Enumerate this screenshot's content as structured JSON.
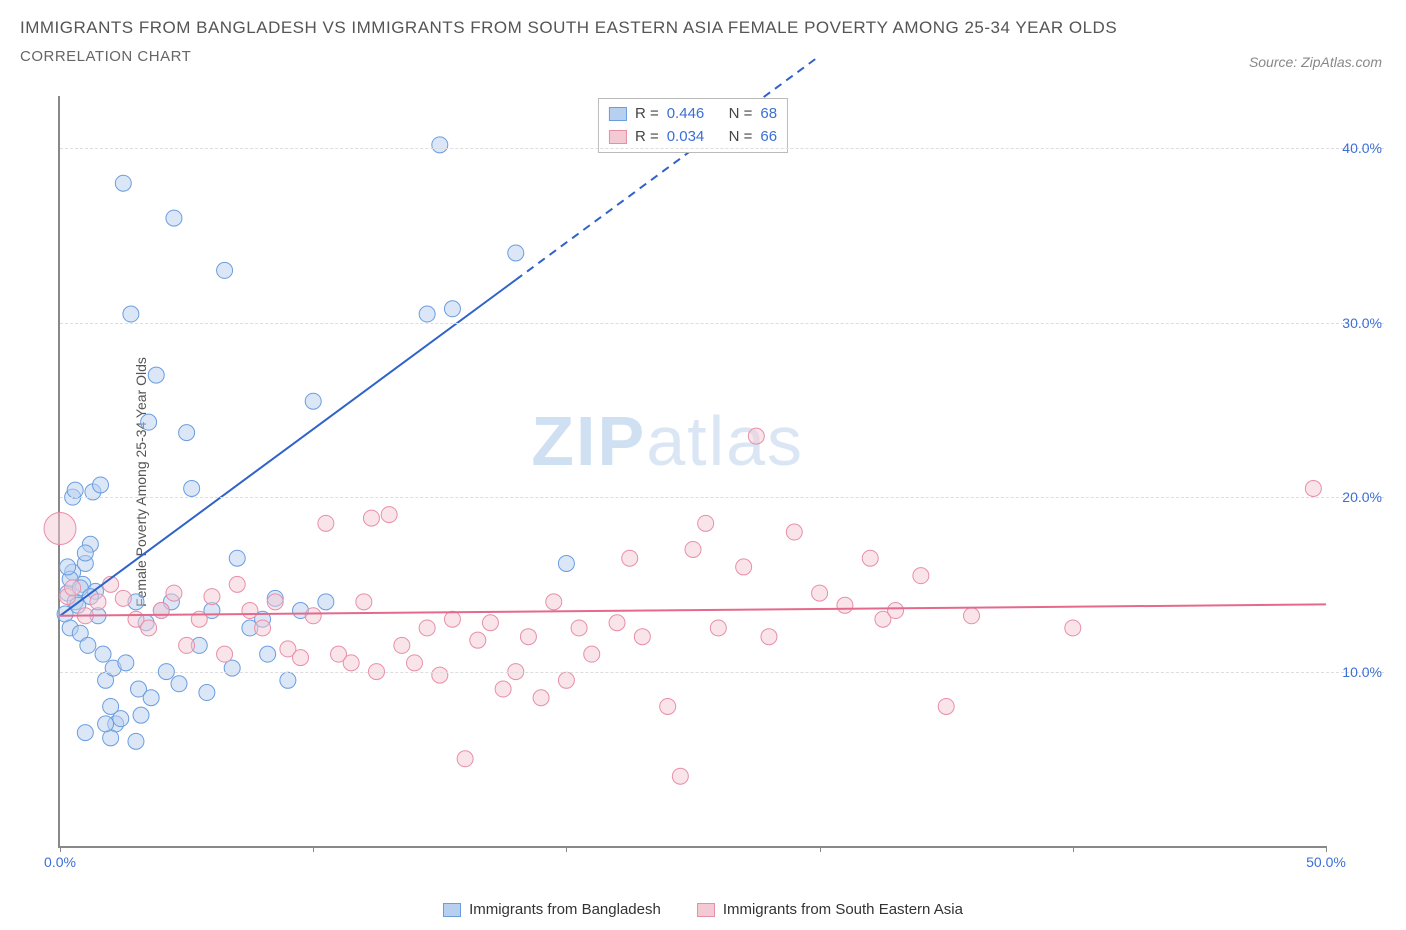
{
  "title_line1": "IMMIGRANTS FROM BANGLADESH VS IMMIGRANTS FROM SOUTH EASTERN ASIA FEMALE POVERTY AMONG 25-34 YEAR OLDS",
  "title_line2": "CORRELATION CHART",
  "source_label": "Source: ZipAtlas.com",
  "ylabel": "Female Poverty Among 25-34 Year Olds",
  "watermark_a": "ZIP",
  "watermark_b": "atlas",
  "chart": {
    "type": "scatter",
    "xlim": [
      0,
      50
    ],
    "ylim": [
      0,
      43
    ],
    "xtick_positions": [
      0,
      10,
      20,
      30,
      40,
      50
    ],
    "xtick_labels": [
      "0.0%",
      "",
      "",
      "",
      "",
      "50.0%"
    ],
    "ytick_positions": [
      10,
      20,
      30,
      40
    ],
    "ytick_labels": [
      "10.0%",
      "20.0%",
      "30.0%",
      "40.0%"
    ],
    "grid_color": "#dddddd",
    "axis_color": "#888888",
    "background_color": "#ffffff",
    "marker_radius": 8,
    "marker_radius_large": 16,
    "marker_opacity": 0.5,
    "series": [
      {
        "name": "Immigrants from Bangladesh",
        "color_fill": "#b8d0f0",
        "color_stroke": "#6a9de0",
        "reg": {
          "slope": 1.07,
          "intercept": 13.2,
          "dash_from_x": 18,
          "dash_to_x": 30,
          "color": "#2f63c9",
          "width": 2
        },
        "R": 0.446,
        "N": 68,
        "points": [
          [
            0.2,
            13.3
          ],
          [
            0.3,
            14.5
          ],
          [
            0.4,
            12.5
          ],
          [
            0.5,
            15.7
          ],
          [
            0.6,
            14.0
          ],
          [
            0.7,
            13.8
          ],
          [
            0.8,
            12.2
          ],
          [
            0.9,
            15.0
          ],
          [
            1.0,
            16.2
          ],
          [
            1.1,
            11.5
          ],
          [
            1.2,
            17.3
          ],
          [
            1.3,
            20.3
          ],
          [
            1.4,
            14.6
          ],
          [
            1.5,
            13.2
          ],
          [
            1.6,
            20.7
          ],
          [
            1.7,
            11.0
          ],
          [
            1.8,
            9.5
          ],
          [
            2.0,
            8.0
          ],
          [
            2.1,
            10.2
          ],
          [
            2.2,
            7.0
          ],
          [
            2.4,
            7.3
          ],
          [
            2.5,
            38.0
          ],
          [
            2.6,
            10.5
          ],
          [
            2.8,
            30.5
          ],
          [
            3.0,
            14.0
          ],
          [
            3.1,
            9.0
          ],
          [
            3.2,
            7.5
          ],
          [
            3.4,
            12.8
          ],
          [
            3.5,
            24.3
          ],
          [
            3.6,
            8.5
          ],
          [
            3.8,
            27.0
          ],
          [
            4.0,
            13.5
          ],
          [
            4.2,
            10.0
          ],
          [
            4.4,
            14.0
          ],
          [
            4.5,
            36.0
          ],
          [
            4.7,
            9.3
          ],
          [
            5.0,
            23.7
          ],
          [
            5.2,
            20.5
          ],
          [
            5.5,
            11.5
          ],
          [
            5.8,
            8.8
          ],
          [
            6.0,
            13.5
          ],
          [
            6.5,
            33.0
          ],
          [
            6.8,
            10.2
          ],
          [
            7.0,
            16.5
          ],
          [
            7.5,
            12.5
          ],
          [
            8.0,
            13.0
          ],
          [
            8.2,
            11.0
          ],
          [
            8.5,
            14.2
          ],
          [
            9.0,
            9.5
          ],
          [
            9.5,
            13.5
          ],
          [
            10.0,
            25.5
          ],
          [
            10.5,
            14.0
          ],
          [
            14.5,
            30.5
          ],
          [
            15.0,
            40.2
          ],
          [
            15.5,
            30.8
          ],
          [
            18.0,
            34.0
          ],
          [
            20.0,
            16.2
          ],
          [
            1.0,
            6.5
          ],
          [
            2.0,
            6.2
          ],
          [
            3.0,
            6.0
          ],
          [
            0.5,
            20.0
          ],
          [
            0.6,
            20.4
          ],
          [
            1.8,
            7.0
          ],
          [
            0.4,
            15.3
          ],
          [
            0.8,
            14.8
          ],
          [
            0.3,
            16.0
          ],
          [
            1.0,
            16.8
          ],
          [
            1.2,
            14.3
          ]
        ]
      },
      {
        "name": "Immigrants from South Eastern Asia",
        "color_fill": "#f3c9d4",
        "color_stroke": "#e88fa8",
        "reg": {
          "slope": 0.013,
          "intercept": 13.2,
          "color": "#e36a8c",
          "width": 2
        },
        "R": 0.034,
        "N": 66,
        "points_large": [
          [
            0.0,
            18.2
          ]
        ],
        "points": [
          [
            0.3,
            14.3
          ],
          [
            1.0,
            13.2
          ],
          [
            1.5,
            14.0
          ],
          [
            2.0,
            15.0
          ],
          [
            2.5,
            14.2
          ],
          [
            3.0,
            13.0
          ],
          [
            3.5,
            12.5
          ],
          [
            4.0,
            13.5
          ],
          [
            4.5,
            14.5
          ],
          [
            5.0,
            11.5
          ],
          [
            5.5,
            13.0
          ],
          [
            6.0,
            14.3
          ],
          [
            6.5,
            11.0
          ],
          [
            7.0,
            15.0
          ],
          [
            7.5,
            13.5
          ],
          [
            8.0,
            12.5
          ],
          [
            8.5,
            14.0
          ],
          [
            9.0,
            11.3
          ],
          [
            9.5,
            10.8
          ],
          [
            10.0,
            13.2
          ],
          [
            10.5,
            18.5
          ],
          [
            11.0,
            11.0
          ],
          [
            11.5,
            10.5
          ],
          [
            12.0,
            14.0
          ],
          [
            12.3,
            18.8
          ],
          [
            12.5,
            10.0
          ],
          [
            13.0,
            19.0
          ],
          [
            13.5,
            11.5
          ],
          [
            14.0,
            10.5
          ],
          [
            14.5,
            12.5
          ],
          [
            15.0,
            9.8
          ],
          [
            15.5,
            13.0
          ],
          [
            16.0,
            5.0
          ],
          [
            16.5,
            11.8
          ],
          [
            17.0,
            12.8
          ],
          [
            17.5,
            9.0
          ],
          [
            18.0,
            10.0
          ],
          [
            18.5,
            12.0
          ],
          [
            19.0,
            8.5
          ],
          [
            19.5,
            14.0
          ],
          [
            20.0,
            9.5
          ],
          [
            20.5,
            12.5
          ],
          [
            21.0,
            11.0
          ],
          [
            22.0,
            12.8
          ],
          [
            22.5,
            16.5
          ],
          [
            23.0,
            12.0
          ],
          [
            24.0,
            8.0
          ],
          [
            24.5,
            4.0
          ],
          [
            25.0,
            17.0
          ],
          [
            25.5,
            18.5
          ],
          [
            26.0,
            12.5
          ],
          [
            27.0,
            16.0
          ],
          [
            27.5,
            23.5
          ],
          [
            28.0,
            12.0
          ],
          [
            29.0,
            18.0
          ],
          [
            30.0,
            14.5
          ],
          [
            31.0,
            13.8
          ],
          [
            32.0,
            16.5
          ],
          [
            32.5,
            13.0
          ],
          [
            33.0,
            13.5
          ],
          [
            34.0,
            15.5
          ],
          [
            35.0,
            8.0
          ],
          [
            36.0,
            13.2
          ],
          [
            40.0,
            12.5
          ],
          [
            49.5,
            20.5
          ],
          [
            0.5,
            14.8
          ]
        ]
      }
    ]
  },
  "legend_top_labels": {
    "R": "R =",
    "N": "N ="
  },
  "legend_bottom": [
    {
      "label": "Immigrants from Bangladesh",
      "fill": "#b8d0f0",
      "stroke": "#6a9de0"
    },
    {
      "label": "Immigrants from South Eastern Asia",
      "fill": "#f3c9d4",
      "stroke": "#e88fa8"
    }
  ]
}
